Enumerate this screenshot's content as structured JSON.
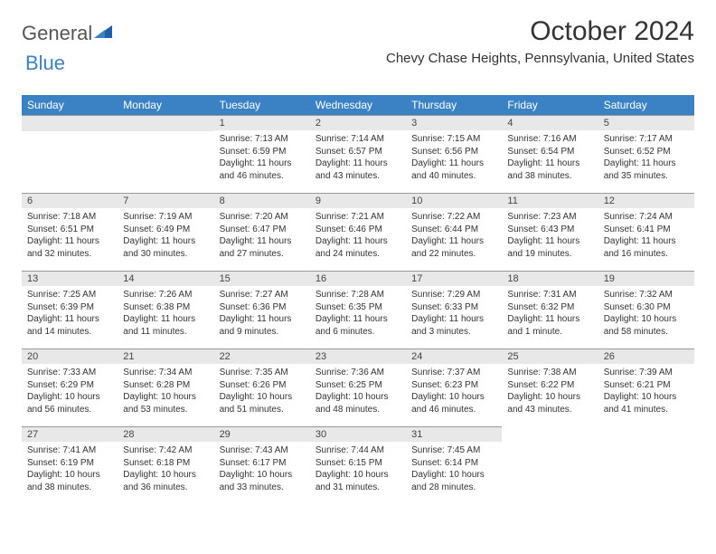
{
  "logo": {
    "general": "General",
    "blue": "Blue"
  },
  "title": {
    "month": "October 2024",
    "location": "Chevy Chase Heights, Pennsylvania, United States"
  },
  "colors": {
    "header_bg": "#3b82c4",
    "header_text": "#ffffff",
    "daynum_bg": "#e8e8e8",
    "border": "#999999",
    "text": "#333333"
  },
  "day_headers": [
    "Sunday",
    "Monday",
    "Tuesday",
    "Wednesday",
    "Thursday",
    "Friday",
    "Saturday"
  ],
  "weeks": [
    [
      null,
      null,
      {
        "n": "1",
        "sunrise": "Sunrise: 7:13 AM",
        "sunset": "Sunset: 6:59 PM",
        "day1": "Daylight: 11 hours",
        "day2": "and 46 minutes."
      },
      {
        "n": "2",
        "sunrise": "Sunrise: 7:14 AM",
        "sunset": "Sunset: 6:57 PM",
        "day1": "Daylight: 11 hours",
        "day2": "and 43 minutes."
      },
      {
        "n": "3",
        "sunrise": "Sunrise: 7:15 AM",
        "sunset": "Sunset: 6:56 PM",
        "day1": "Daylight: 11 hours",
        "day2": "and 40 minutes."
      },
      {
        "n": "4",
        "sunrise": "Sunrise: 7:16 AM",
        "sunset": "Sunset: 6:54 PM",
        "day1": "Daylight: 11 hours",
        "day2": "and 38 minutes."
      },
      {
        "n": "5",
        "sunrise": "Sunrise: 7:17 AM",
        "sunset": "Sunset: 6:52 PM",
        "day1": "Daylight: 11 hours",
        "day2": "and 35 minutes."
      }
    ],
    [
      {
        "n": "6",
        "sunrise": "Sunrise: 7:18 AM",
        "sunset": "Sunset: 6:51 PM",
        "day1": "Daylight: 11 hours",
        "day2": "and 32 minutes."
      },
      {
        "n": "7",
        "sunrise": "Sunrise: 7:19 AM",
        "sunset": "Sunset: 6:49 PM",
        "day1": "Daylight: 11 hours",
        "day2": "and 30 minutes."
      },
      {
        "n": "8",
        "sunrise": "Sunrise: 7:20 AM",
        "sunset": "Sunset: 6:47 PM",
        "day1": "Daylight: 11 hours",
        "day2": "and 27 minutes."
      },
      {
        "n": "9",
        "sunrise": "Sunrise: 7:21 AM",
        "sunset": "Sunset: 6:46 PM",
        "day1": "Daylight: 11 hours",
        "day2": "and 24 minutes."
      },
      {
        "n": "10",
        "sunrise": "Sunrise: 7:22 AM",
        "sunset": "Sunset: 6:44 PM",
        "day1": "Daylight: 11 hours",
        "day2": "and 22 minutes."
      },
      {
        "n": "11",
        "sunrise": "Sunrise: 7:23 AM",
        "sunset": "Sunset: 6:43 PM",
        "day1": "Daylight: 11 hours",
        "day2": "and 19 minutes."
      },
      {
        "n": "12",
        "sunrise": "Sunrise: 7:24 AM",
        "sunset": "Sunset: 6:41 PM",
        "day1": "Daylight: 11 hours",
        "day2": "and 16 minutes."
      }
    ],
    [
      {
        "n": "13",
        "sunrise": "Sunrise: 7:25 AM",
        "sunset": "Sunset: 6:39 PM",
        "day1": "Daylight: 11 hours",
        "day2": "and 14 minutes."
      },
      {
        "n": "14",
        "sunrise": "Sunrise: 7:26 AM",
        "sunset": "Sunset: 6:38 PM",
        "day1": "Daylight: 11 hours",
        "day2": "and 11 minutes."
      },
      {
        "n": "15",
        "sunrise": "Sunrise: 7:27 AM",
        "sunset": "Sunset: 6:36 PM",
        "day1": "Daylight: 11 hours",
        "day2": "and 9 minutes."
      },
      {
        "n": "16",
        "sunrise": "Sunrise: 7:28 AM",
        "sunset": "Sunset: 6:35 PM",
        "day1": "Daylight: 11 hours",
        "day2": "and 6 minutes."
      },
      {
        "n": "17",
        "sunrise": "Sunrise: 7:29 AM",
        "sunset": "Sunset: 6:33 PM",
        "day1": "Daylight: 11 hours",
        "day2": "and 3 minutes."
      },
      {
        "n": "18",
        "sunrise": "Sunrise: 7:31 AM",
        "sunset": "Sunset: 6:32 PM",
        "day1": "Daylight: 11 hours",
        "day2": "and 1 minute."
      },
      {
        "n": "19",
        "sunrise": "Sunrise: 7:32 AM",
        "sunset": "Sunset: 6:30 PM",
        "day1": "Daylight: 10 hours",
        "day2": "and 58 minutes."
      }
    ],
    [
      {
        "n": "20",
        "sunrise": "Sunrise: 7:33 AM",
        "sunset": "Sunset: 6:29 PM",
        "day1": "Daylight: 10 hours",
        "day2": "and 56 minutes."
      },
      {
        "n": "21",
        "sunrise": "Sunrise: 7:34 AM",
        "sunset": "Sunset: 6:28 PM",
        "day1": "Daylight: 10 hours",
        "day2": "and 53 minutes."
      },
      {
        "n": "22",
        "sunrise": "Sunrise: 7:35 AM",
        "sunset": "Sunset: 6:26 PM",
        "day1": "Daylight: 10 hours",
        "day2": "and 51 minutes."
      },
      {
        "n": "23",
        "sunrise": "Sunrise: 7:36 AM",
        "sunset": "Sunset: 6:25 PM",
        "day1": "Daylight: 10 hours",
        "day2": "and 48 minutes."
      },
      {
        "n": "24",
        "sunrise": "Sunrise: 7:37 AM",
        "sunset": "Sunset: 6:23 PM",
        "day1": "Daylight: 10 hours",
        "day2": "and 46 minutes."
      },
      {
        "n": "25",
        "sunrise": "Sunrise: 7:38 AM",
        "sunset": "Sunset: 6:22 PM",
        "day1": "Daylight: 10 hours",
        "day2": "and 43 minutes."
      },
      {
        "n": "26",
        "sunrise": "Sunrise: 7:39 AM",
        "sunset": "Sunset: 6:21 PM",
        "day1": "Daylight: 10 hours",
        "day2": "and 41 minutes."
      }
    ],
    [
      {
        "n": "27",
        "sunrise": "Sunrise: 7:41 AM",
        "sunset": "Sunset: 6:19 PM",
        "day1": "Daylight: 10 hours",
        "day2": "and 38 minutes."
      },
      {
        "n": "28",
        "sunrise": "Sunrise: 7:42 AM",
        "sunset": "Sunset: 6:18 PM",
        "day1": "Daylight: 10 hours",
        "day2": "and 36 minutes."
      },
      {
        "n": "29",
        "sunrise": "Sunrise: 7:43 AM",
        "sunset": "Sunset: 6:17 PM",
        "day1": "Daylight: 10 hours",
        "day2": "and 33 minutes."
      },
      {
        "n": "30",
        "sunrise": "Sunrise: 7:44 AM",
        "sunset": "Sunset: 6:15 PM",
        "day1": "Daylight: 10 hours",
        "day2": "and 31 minutes."
      },
      {
        "n": "31",
        "sunrise": "Sunrise: 7:45 AM",
        "sunset": "Sunset: 6:14 PM",
        "day1": "Daylight: 10 hours",
        "day2": "and 28 minutes."
      },
      null,
      null
    ]
  ]
}
